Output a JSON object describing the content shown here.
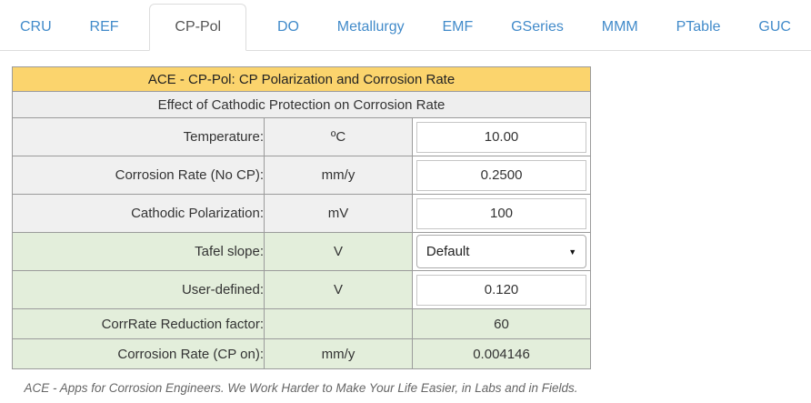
{
  "tabs": [
    {
      "id": "cru",
      "label": "CRU",
      "active": false
    },
    {
      "id": "ref",
      "label": "REF",
      "active": false
    },
    {
      "id": "cp-pol",
      "label": "CP-Pol",
      "active": true
    },
    {
      "id": "do",
      "label": "DO",
      "active": false
    },
    {
      "id": "metallurgy",
      "label": "Metallurgy",
      "active": false
    },
    {
      "id": "emf",
      "label": "EMF",
      "active": false
    },
    {
      "id": "gseries",
      "label": "GSeries",
      "active": false
    },
    {
      "id": "mmm",
      "label": "MMM",
      "active": false
    },
    {
      "id": "ptable",
      "label": "PTable",
      "active": false
    },
    {
      "id": "guc",
      "label": "GUC",
      "active": false
    }
  ],
  "table": {
    "title": "ACE - CP-Pol: CP Polarization and Corrosion Rate",
    "subtitle": "Effect of Cathodic Protection on Corrosion Rate",
    "columns": [
      "label",
      "unit",
      "value"
    ],
    "rows": [
      {
        "id": "temperature",
        "label": "Temperature:",
        "unit": "ºC",
        "value": "10.00",
        "control": "input",
        "theme": "gray"
      },
      {
        "id": "corrosion-rate-no-cp",
        "label": "Corrosion Rate (No CP):",
        "unit": "mm/y",
        "value": "0.2500",
        "control": "input",
        "theme": "gray"
      },
      {
        "id": "cathodic-polarization",
        "label": "Cathodic Polarization:",
        "unit": "mV",
        "value": "100",
        "control": "input",
        "theme": "gray"
      },
      {
        "id": "tafel-slope",
        "label": "Tafel slope:",
        "unit": "V",
        "value": "Default",
        "control": "select",
        "theme": "green"
      },
      {
        "id": "user-defined",
        "label": "User-defined:",
        "unit": "V",
        "value": "0.120",
        "control": "input",
        "theme": "green"
      },
      {
        "id": "corrrate-reduction",
        "label": "CorrRate Reduction factor:",
        "unit": "",
        "value": "60",
        "control": "readonly",
        "theme": "green"
      },
      {
        "id": "corrosion-rate-cp-on",
        "label": "Corrosion Rate (CP on):",
        "unit": "mm/y",
        "value": "0.004146",
        "control": "readonly",
        "theme": "green"
      }
    ]
  },
  "footer": {
    "text": "ACE - Apps for Corrosion Engineers. We Work Harder to Make Your Life Easier, in Labs and in Fields."
  },
  "icons": {
    "select_arrow": "chevron-down-icon",
    "select_arrow_glyph": "▼"
  },
  "colors": {
    "accent_blue": "#428bca",
    "header_orange": "#fbd46d",
    "header_gray": "#eeeeee",
    "cell_gray": "#f0f0f0",
    "cell_green": "#e3eedb",
    "table_border": "#9b9b9b"
  }
}
